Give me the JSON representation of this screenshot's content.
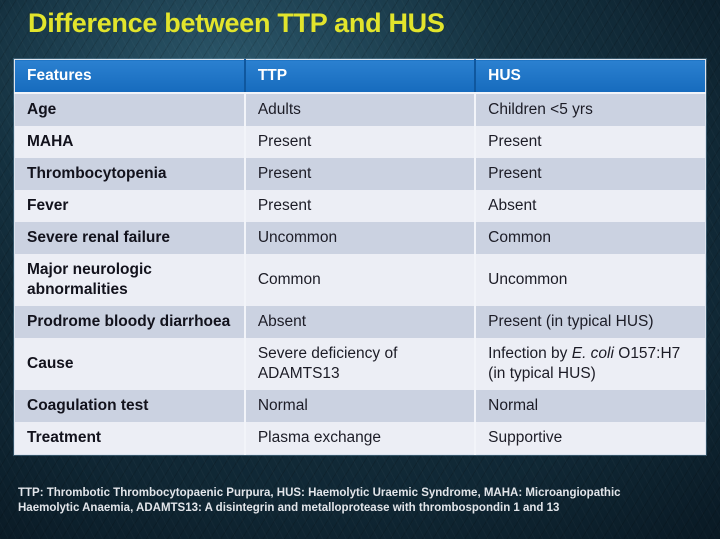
{
  "slide": {
    "title": "Difference between TTP and HUS",
    "footnote": "TTP: Thrombotic Thrombocytopaenic Purpura, HUS: Haemolytic Uraemic Syndrome, MAHA:  Microangiopathic Haemolytic Anaemia, ADAMTS13: A disintegrin and metalloprotease with thrombospondin 1 and 13"
  },
  "table": {
    "headers": [
      "Features",
      "TTP",
      "HUS"
    ],
    "cell_names": [
      "feature-cell",
      "ttp-cell",
      "hus-cell"
    ],
    "rows": [
      [
        [
          "Age"
        ],
        [
          "Adults"
        ],
        [
          "Children <5 yrs"
        ]
      ],
      [
        [
          "MAHA"
        ],
        [
          "Present"
        ],
        [
          "Present"
        ]
      ],
      [
        [
          "Thrombocytopenia"
        ],
        [
          "Present"
        ],
        [
          "Present"
        ]
      ],
      [
        [
          "Fever"
        ],
        [
          "Present"
        ],
        [
          "Absent"
        ]
      ],
      [
        [
          "Severe renal failure"
        ],
        [
          "Uncommon"
        ],
        [
          "Common"
        ]
      ],
      [
        [
          "Major neurologic abnormalities"
        ],
        [
          "Common"
        ],
        [
          "Uncommon"
        ]
      ],
      [
        [
          "Prodrome bloody diarrhoea"
        ],
        [
          "Absent"
        ],
        [
          "Present (in typical HUS)"
        ]
      ],
      [
        [
          "Cause"
        ],
        [
          "Severe deficiency of ADAMTS13"
        ],
        [
          "Infection by ",
          {
            "i": "E. coli"
          },
          " O157:H7 (in typical HUS)"
        ]
      ],
      [
        [
          "Coagulation test"
        ],
        [
          "Normal"
        ],
        [
          "Normal"
        ]
      ],
      [
        [
          "Treatment"
        ],
        [
          "Plasma exchange"
        ],
        [
          "Supportive"
        ]
      ]
    ]
  },
  "colors": {
    "title_text": "#e2e42c",
    "header_bg": "#1e73c8",
    "header_text": "#ffffff",
    "row_dark": "#cbd2e1",
    "row_light": "#eceef5",
    "cell_text": "#1c1c26",
    "background": "#0e2431",
    "footnote_text": "#e2e5ea"
  }
}
